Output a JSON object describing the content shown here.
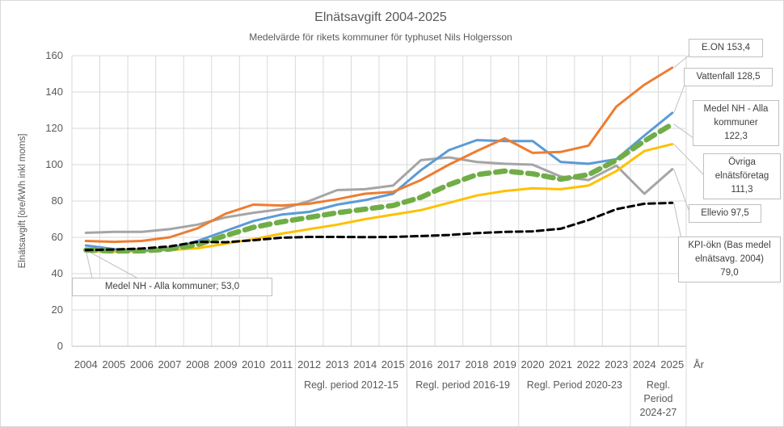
{
  "title": "Elnätsavgift 2004-2025",
  "subtitle": "Medelvärde för rikets kommuner för typhuset Nils Holgersson",
  "chart_data": {
    "type": "line",
    "xlabel": "År",
    "ylabel": "Elnätsavgift [öre/kWh inkl moms]",
    "ylim": [
      0,
      160
    ],
    "ytick_step": 20,
    "yticks": [
      0,
      20,
      40,
      60,
      80,
      100,
      120,
      140,
      160
    ],
    "grid": true,
    "categories": [
      "2004",
      "2005",
      "2006",
      "2007",
      "2008",
      "2009",
      "2010",
      "2011",
      "2012",
      "2013",
      "2014",
      "2015",
      "2016",
      "2017",
      "2018",
      "2019",
      "2020",
      "2021",
      "2022",
      "2023",
      "2024",
      "2025"
    ],
    "series": [
      {
        "id": "ellevio",
        "name": "Ellevio",
        "color": "#A5A5A5",
        "style": "solid",
        "width": 3,
        "values": [
          62.5,
          63,
          63,
          64.5,
          67,
          71,
          73.5,
          75.5,
          80,
          86,
          86.5,
          88.5,
          102.5,
          104,
          101.5,
          100.5,
          100,
          93.5,
          91.5,
          99.5,
          84,
          97.5
        ]
      },
      {
        "id": "ovriga",
        "name": "Övriga elnätsföretag",
        "color": "#FFC000",
        "style": "solid",
        "width": 3,
        "values": [
          52.5,
          52,
          52.5,
          53,
          54,
          56.5,
          59,
          62,
          64.5,
          67,
          70,
          72.5,
          75,
          79,
          83,
          85.5,
          87,
          86.5,
          88.5,
          96.5,
          107.5,
          111.3
        ]
      },
      {
        "id": "vattenfall",
        "name": "Vattenfall",
        "color": "#5B9BD5",
        "style": "solid",
        "width": 3,
        "values": [
          55.5,
          53.5,
          52.5,
          53.5,
          58,
          63.5,
          69,
          72.5,
          74,
          78,
          80.5,
          84,
          97,
          108,
          113.5,
          113,
          113,
          101.5,
          100.5,
          103,
          116,
          128.5
        ]
      },
      {
        "id": "eon",
        "name": "E.ON",
        "color": "#ED7D31",
        "style": "solid",
        "width": 3,
        "values": [
          58,
          57.5,
          58,
          60,
          65,
          73,
          78,
          77.5,
          78.5,
          81,
          84,
          85,
          91.5,
          100,
          107.5,
          114.5,
          106.5,
          107,
          110.5,
          132,
          144,
          153.4
        ]
      },
      {
        "id": "medel",
        "name": "Medel NH - Alla kommuner",
        "color": "#70AD47",
        "style": "dashed-thick",
        "width": 6.5,
        "values": [
          53,
          52.5,
          52.5,
          53.5,
          56,
          61,
          65.5,
          68.5,
          71,
          73.5,
          75.5,
          77.5,
          82,
          89,
          94.5,
          96.5,
          95,
          92,
          94.5,
          102.5,
          113,
          122.3
        ]
      },
      {
        "id": "kpi",
        "name": "KPI-ökn (Bas medel elnätsavg. 2004)",
        "color": "#000000",
        "style": "dashed",
        "width": 3,
        "values": [
          53,
          53.3,
          53.8,
          55,
          57.5,
          57.3,
          58.4,
          59.8,
          60.2,
          60.2,
          60.1,
          60.2,
          60.7,
          61.3,
          62.3,
          63,
          63.3,
          64.7,
          69.5,
          75.5,
          78.5,
          79
        ]
      }
    ],
    "end_labels": {
      "eon": "E.ON 153,4",
      "vattenfall": "Vattenfall 128,5",
      "medel": "Medel NH - Alla kommuner 122,3",
      "ovriga": "Övriga elnätsföretag 111,3",
      "ellevio": "Ellevio 97,5",
      "kpi": "KPI-ökn (Bas medel elnätsavg. 2004) 79,0"
    },
    "callouts": [
      {
        "id": "eon",
        "lines": [
          "E.ON 153,4"
        ]
      },
      {
        "id": "vattenfall",
        "lines": [
          "Vattenfall 128,5"
        ]
      },
      {
        "id": "medel",
        "lines": [
          "Medel NH - Alla",
          "kommuner",
          "122,3"
        ]
      },
      {
        "id": "ovriga",
        "lines": [
          "Övriga",
          "elnätsföretag",
          "111,3"
        ]
      },
      {
        "id": "ellevio",
        "lines": [
          "Ellevio 97,5"
        ]
      },
      {
        "id": "kpi",
        "lines": [
          "KPI-ökn (Bas medel",
          "elnätsavg. 2004)",
          "79,0"
        ]
      },
      {
        "id": "medel2004",
        "lines": [
          "Medel NH - Alla kommuner; 53,0"
        ]
      }
    ],
    "period_labels": [
      {
        "id": "p1",
        "lines": [
          "Regl. period 2012-15"
        ],
        "span": [
          8,
          12
        ]
      },
      {
        "id": "p2",
        "lines": [
          "Regl. period 2016-19"
        ],
        "span": [
          12,
          16
        ]
      },
      {
        "id": "p3",
        "lines": [
          "Regl. Period 2020-23"
        ],
        "span": [
          16,
          20
        ]
      },
      {
        "id": "p4",
        "lines": [
          "Regl.",
          "Period",
          "2024-27"
        ],
        "span": [
          20,
          22
        ]
      }
    ],
    "colors": {
      "gridline": "#D9D9D9",
      "axis_line": "#BFBFBF",
      "leader_line": "#BFBFBF",
      "axis_text": "#595959",
      "callout_text": "#404040"
    }
  }
}
